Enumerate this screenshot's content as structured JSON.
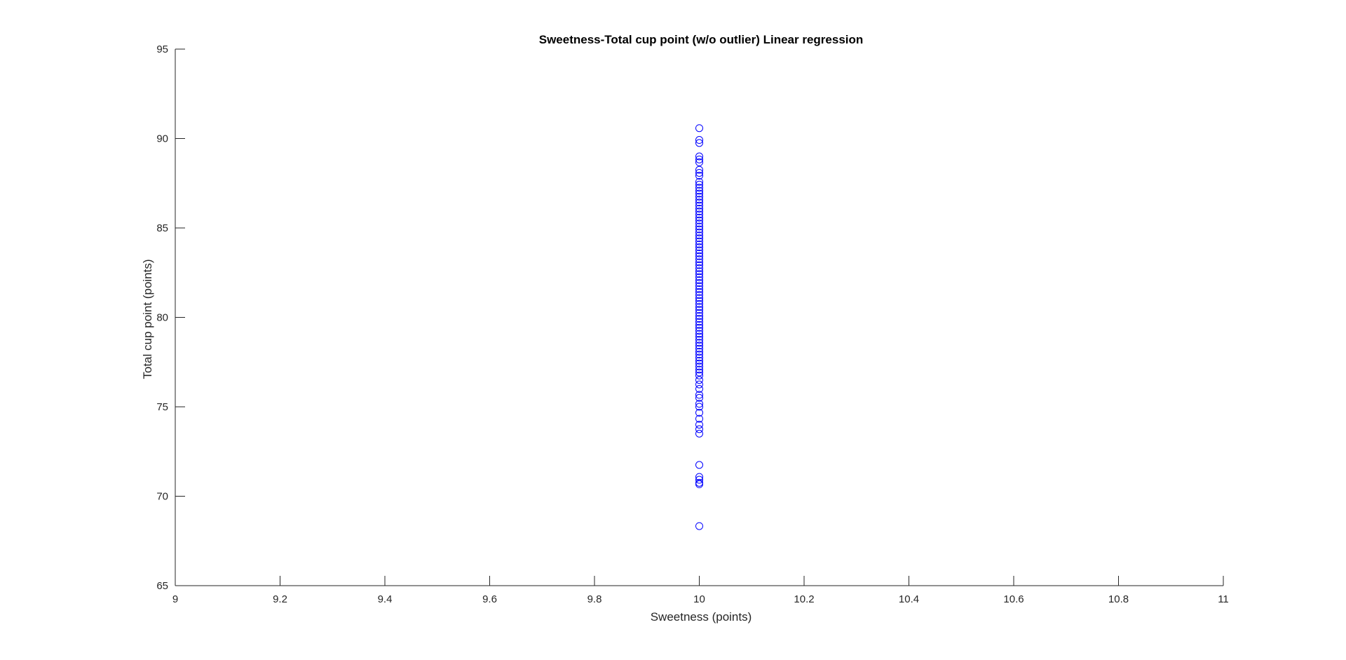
{
  "chart_data": {
    "type": "scatter",
    "title": "Sweetness-Total cup point (w/o outlier) Linear regression",
    "xlabel": "Sweetness (points)",
    "ylabel": "Total cup point (points)",
    "xlim": [
      9,
      11
    ],
    "ylim": [
      65,
      95
    ],
    "xticks": [
      "9",
      "9.2",
      "9.4",
      "9.6",
      "9.8",
      "10",
      "10.2",
      "10.4",
      "10.6",
      "10.8",
      "11"
    ],
    "yticks": [
      "65",
      "70",
      "75",
      "80",
      "85",
      "90",
      "95"
    ],
    "grid": false,
    "marker": "open-circle",
    "marker_color": "#0000ff",
    "axis_color": "#262626",
    "series": [
      {
        "points": [
          {
            "x": 10,
            "y": 90.58
          },
          {
            "x": 10,
            "y": 89.92
          },
          {
            "x": 10,
            "y": 89.75
          },
          {
            "x": 10,
            "y": 89.0
          },
          {
            "x": 10,
            "y": 88.83
          },
          {
            "x": 10,
            "y": 88.67
          },
          {
            "x": 10,
            "y": 88.25
          },
          {
            "x": 10,
            "y": 88.08
          },
          {
            "x": 10,
            "y": 87.92
          },
          {
            "x": 10,
            "y": 87.58
          },
          {
            "x": 10,
            "y": 87.42
          },
          {
            "x": 10,
            "y": 87.25
          },
          {
            "x": 10,
            "y": 87.08
          },
          {
            "x": 10,
            "y": 86.92
          },
          {
            "x": 10,
            "y": 86.75
          },
          {
            "x": 10,
            "y": 86.58
          },
          {
            "x": 10,
            "y": 86.42
          },
          {
            "x": 10,
            "y": 86.25
          },
          {
            "x": 10,
            "y": 86.08
          },
          {
            "x": 10,
            "y": 85.92
          },
          {
            "x": 10,
            "y": 85.75
          },
          {
            "x": 10,
            "y": 85.58
          },
          {
            "x": 10,
            "y": 85.42
          },
          {
            "x": 10,
            "y": 85.25
          },
          {
            "x": 10,
            "y": 85.08
          },
          {
            "x": 10,
            "y": 84.92
          },
          {
            "x": 10,
            "y": 84.75
          },
          {
            "x": 10,
            "y": 84.58
          },
          {
            "x": 10,
            "y": 84.42
          },
          {
            "x": 10,
            "y": 84.25
          },
          {
            "x": 10,
            "y": 84.08
          },
          {
            "x": 10,
            "y": 83.92
          },
          {
            "x": 10,
            "y": 83.75
          },
          {
            "x": 10,
            "y": 83.58
          },
          {
            "x": 10,
            "y": 83.42
          },
          {
            "x": 10,
            "y": 83.25
          },
          {
            "x": 10,
            "y": 83.08
          },
          {
            "x": 10,
            "y": 82.92
          },
          {
            "x": 10,
            "y": 82.75
          },
          {
            "x": 10,
            "y": 82.58
          },
          {
            "x": 10,
            "y": 82.42
          },
          {
            "x": 10,
            "y": 82.25
          },
          {
            "x": 10,
            "y": 82.08
          },
          {
            "x": 10,
            "y": 81.92
          },
          {
            "x": 10,
            "y": 81.75
          },
          {
            "x": 10,
            "y": 81.58
          },
          {
            "x": 10,
            "y": 81.42
          },
          {
            "x": 10,
            "y": 81.25
          },
          {
            "x": 10,
            "y": 81.08
          },
          {
            "x": 10,
            "y": 80.92
          },
          {
            "x": 10,
            "y": 80.75
          },
          {
            "x": 10,
            "y": 80.58
          },
          {
            "x": 10,
            "y": 80.42
          },
          {
            "x": 10,
            "y": 80.25
          },
          {
            "x": 10,
            "y": 80.08
          },
          {
            "x": 10,
            "y": 79.92
          },
          {
            "x": 10,
            "y": 79.75
          },
          {
            "x": 10,
            "y": 79.58
          },
          {
            "x": 10,
            "y": 79.42
          },
          {
            "x": 10,
            "y": 79.25
          },
          {
            "x": 10,
            "y": 79.08
          },
          {
            "x": 10,
            "y": 78.92
          },
          {
            "x": 10,
            "y": 78.75
          },
          {
            "x": 10,
            "y": 78.58
          },
          {
            "x": 10,
            "y": 78.42
          },
          {
            "x": 10,
            "y": 78.25
          },
          {
            "x": 10,
            "y": 78.08
          },
          {
            "x": 10,
            "y": 77.92
          },
          {
            "x": 10,
            "y": 77.75
          },
          {
            "x": 10,
            "y": 77.58
          },
          {
            "x": 10,
            "y": 77.42
          },
          {
            "x": 10,
            "y": 77.25
          },
          {
            "x": 10,
            "y": 77.08
          },
          {
            "x": 10,
            "y": 76.92
          },
          {
            "x": 10,
            "y": 76.75
          },
          {
            "x": 10,
            "y": 76.5
          },
          {
            "x": 10,
            "y": 76.25
          },
          {
            "x": 10,
            "y": 76.0
          },
          {
            "x": 10,
            "y": 75.67
          },
          {
            "x": 10,
            "y": 75.5
          },
          {
            "x": 10,
            "y": 75.17
          },
          {
            "x": 10,
            "y": 75.0
          },
          {
            "x": 10,
            "y": 74.67
          },
          {
            "x": 10,
            "y": 74.33
          },
          {
            "x": 10,
            "y": 74.0
          },
          {
            "x": 10,
            "y": 73.75
          },
          {
            "x": 10,
            "y": 73.5
          },
          {
            "x": 10,
            "y": 71.75
          },
          {
            "x": 10,
            "y": 71.08
          },
          {
            "x": 10,
            "y": 70.92
          },
          {
            "x": 10,
            "y": 70.75
          },
          {
            "x": 10,
            "y": 70.67
          },
          {
            "x": 10,
            "y": 68.33
          }
        ]
      }
    ]
  }
}
